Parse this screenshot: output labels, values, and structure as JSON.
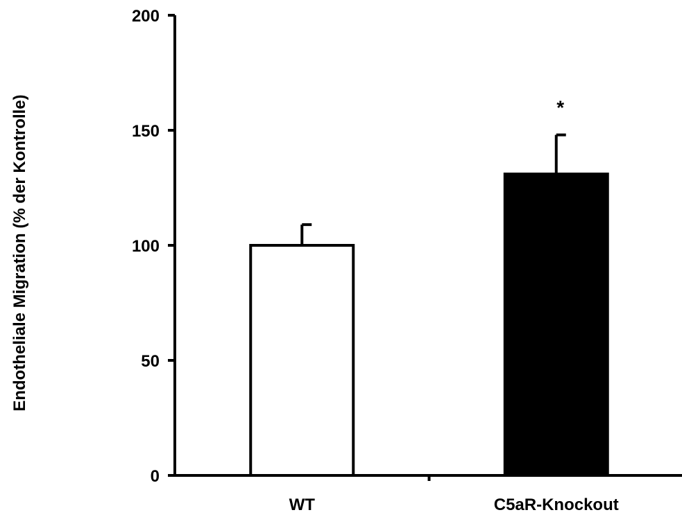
{
  "chart_data": {
    "type": "bar",
    "title": "",
    "xlabel": "",
    "ylabel": "Endotheliale Migration (% der Kontrolle)",
    "categories": [
      "WT",
      "C5aR-Knockout"
    ],
    "series": [
      {
        "values": [
          100,
          131
        ],
        "errors": [
          9,
          17
        ],
        "colors": [
          "#ffffff",
          "#000000"
        ]
      }
    ],
    "annotations": [
      {
        "category": "C5aR-Knockout",
        "text": "*"
      }
    ],
    "ylim": [
      0,
      200
    ],
    "yticks": [
      0,
      50,
      100,
      150,
      200
    ],
    "grid": false,
    "legend": "none"
  }
}
